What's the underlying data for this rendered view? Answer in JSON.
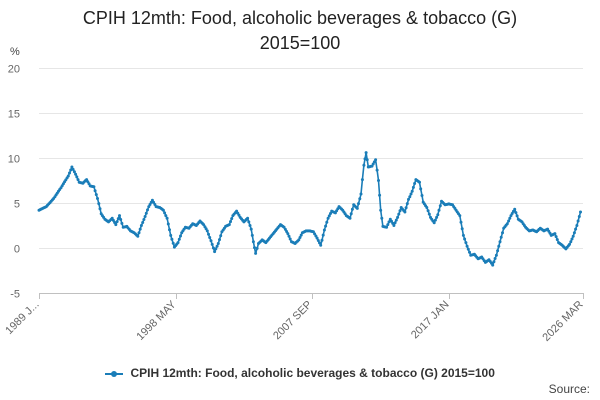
{
  "chart_data": {
    "type": "line",
    "title_line1": "CPIH 12mth: Food, alcoholic beverages & tobacco (G)",
    "title_line2": "2015=100",
    "ylabel": "%",
    "ylim": [
      -5,
      20
    ],
    "yticks": [
      -5,
      0,
      5,
      10,
      15,
      20
    ],
    "xlim": [
      1989.0,
      2026.17
    ],
    "xticks": [
      {
        "label": "1989 J...",
        "value": 1989.0
      },
      {
        "label": "1998 MAY",
        "value": 1998.33
      },
      {
        "label": "2007 SEP",
        "value": 2007.67
      },
      {
        "label": "2017 JAN",
        "value": 2017.0
      },
      {
        "label": "2026 MAR",
        "value": 2026.17
      }
    ],
    "grid": true,
    "legend_position": "bottom",
    "series": [
      {
        "name": "CPIH 12mth: Food, alcoholic beverages & tobacco (G) 2015=100",
        "color": "#1a7db8",
        "points": [
          [
            1989.0,
            4.2
          ],
          [
            1989.5,
            4.6
          ],
          [
            1990.0,
            5.5
          ],
          [
            1990.5,
            6.7
          ],
          [
            1991.0,
            8.0
          ],
          [
            1991.25,
            9.0
          ],
          [
            1991.5,
            8.2
          ],
          [
            1991.75,
            7.3
          ],
          [
            1992.0,
            7.2
          ],
          [
            1992.25,
            7.6
          ],
          [
            1992.5,
            6.9
          ],
          [
            1992.75,
            6.8
          ],
          [
            1993.0,
            5.5
          ],
          [
            1993.25,
            3.8
          ],
          [
            1993.5,
            3.2
          ],
          [
            1993.75,
            2.9
          ],
          [
            1994.0,
            3.3
          ],
          [
            1994.25,
            2.6
          ],
          [
            1994.5,
            3.6
          ],
          [
            1994.75,
            2.3
          ],
          [
            1995.0,
            2.4
          ],
          [
            1995.25,
            1.9
          ],
          [
            1995.5,
            1.7
          ],
          [
            1995.75,
            1.3
          ],
          [
            1996.0,
            2.5
          ],
          [
            1996.25,
            3.5
          ],
          [
            1996.5,
            4.6
          ],
          [
            1996.75,
            5.3
          ],
          [
            1997.0,
            4.6
          ],
          [
            1997.25,
            4.5
          ],
          [
            1997.5,
            4.2
          ],
          [
            1997.75,
            3.3
          ],
          [
            1998.0,
            1.4
          ],
          [
            1998.25,
            0.1
          ],
          [
            1998.5,
            0.6
          ],
          [
            1998.75,
            1.7
          ],
          [
            1999.0,
            2.3
          ],
          [
            1999.25,
            2.2
          ],
          [
            1999.5,
            2.7
          ],
          [
            1999.75,
            2.5
          ],
          [
            2000.0,
            3.0
          ],
          [
            2000.25,
            2.6
          ],
          [
            2000.5,
            1.9
          ],
          [
            2000.75,
            0.8
          ],
          [
            2001.0,
            -0.4
          ],
          [
            2001.25,
            0.5
          ],
          [
            2001.5,
            1.8
          ],
          [
            2001.75,
            2.4
          ],
          [
            2002.0,
            2.6
          ],
          [
            2002.25,
            3.6
          ],
          [
            2002.5,
            4.1
          ],
          [
            2002.75,
            3.4
          ],
          [
            2003.0,
            2.9
          ],
          [
            2003.25,
            3.3
          ],
          [
            2003.5,
            2.1
          ],
          [
            2003.65,
            0.7
          ],
          [
            2003.8,
            -0.6
          ],
          [
            2004.0,
            0.5
          ],
          [
            2004.25,
            0.9
          ],
          [
            2004.5,
            0.6
          ],
          [
            2004.75,
            1.1
          ],
          [
            2005.0,
            1.6
          ],
          [
            2005.25,
            2.1
          ],
          [
            2005.5,
            2.6
          ],
          [
            2005.75,
            2.3
          ],
          [
            2006.0,
            1.6
          ],
          [
            2006.25,
            0.7
          ],
          [
            2006.5,
            0.5
          ],
          [
            2006.75,
            0.9
          ],
          [
            2007.0,
            1.7
          ],
          [
            2007.25,
            1.9
          ],
          [
            2007.5,
            1.9
          ],
          [
            2007.75,
            1.8
          ],
          [
            2008.0,
            1.1
          ],
          [
            2008.25,
            0.3
          ],
          [
            2008.5,
            2.0
          ],
          [
            2008.75,
            3.3
          ],
          [
            2009.0,
            4.1
          ],
          [
            2009.25,
            3.9
          ],
          [
            2009.5,
            4.6
          ],
          [
            2009.75,
            4.2
          ],
          [
            2010.0,
            3.6
          ],
          [
            2010.25,
            3.3
          ],
          [
            2010.5,
            4.8
          ],
          [
            2010.75,
            4.4
          ],
          [
            2011.0,
            6.0
          ],
          [
            2011.2,
            9.2
          ],
          [
            2011.35,
            10.6
          ],
          [
            2011.5,
            9.0
          ],
          [
            2011.75,
            9.1
          ],
          [
            2012.0,
            9.8
          ],
          [
            2012.2,
            7.5
          ],
          [
            2012.35,
            4.2
          ],
          [
            2012.5,
            2.4
          ],
          [
            2012.75,
            2.3
          ],
          [
            2013.0,
            3.2
          ],
          [
            2013.25,
            2.5
          ],
          [
            2013.5,
            3.4
          ],
          [
            2013.75,
            4.5
          ],
          [
            2014.0,
            4.0
          ],
          [
            2014.25,
            5.4
          ],
          [
            2014.5,
            6.3
          ],
          [
            2014.75,
            7.6
          ],
          [
            2015.0,
            7.3
          ],
          [
            2015.25,
            5.1
          ],
          [
            2015.5,
            4.5
          ],
          [
            2015.75,
            3.4
          ],
          [
            2016.0,
            2.8
          ],
          [
            2016.25,
            3.7
          ],
          [
            2016.5,
            5.2
          ],
          [
            2016.75,
            4.8
          ],
          [
            2017.0,
            4.9
          ],
          [
            2017.25,
            4.8
          ],
          [
            2017.5,
            4.2
          ],
          [
            2017.75,
            3.6
          ],
          [
            2018.0,
            1.4
          ],
          [
            2018.25,
            0.2
          ],
          [
            2018.5,
            -0.8
          ],
          [
            2018.75,
            -0.7
          ],
          [
            2019.0,
            -1.2
          ],
          [
            2019.25,
            -1.0
          ],
          [
            2019.5,
            -1.6
          ],
          [
            2019.75,
            -1.3
          ],
          [
            2020.0,
            -1.9
          ],
          [
            2020.25,
            -0.8
          ],
          [
            2020.5,
            0.7
          ],
          [
            2020.75,
            2.2
          ],
          [
            2021.0,
            2.7
          ],
          [
            2021.25,
            3.6
          ],
          [
            2021.5,
            4.3
          ],
          [
            2021.75,
            3.2
          ],
          [
            2022.0,
            2.9
          ],
          [
            2022.25,
            2.3
          ],
          [
            2022.5,
            1.9
          ],
          [
            2022.75,
            2.0
          ],
          [
            2023.0,
            1.8
          ],
          [
            2023.25,
            2.2
          ],
          [
            2023.5,
            1.9
          ],
          [
            2023.75,
            2.1
          ],
          [
            2024.0,
            1.4
          ],
          [
            2024.25,
            1.6
          ],
          [
            2024.5,
            0.6
          ],
          [
            2024.75,
            0.3
          ],
          [
            2025.0,
            -0.1
          ],
          [
            2025.25,
            0.4
          ],
          [
            2025.5,
            1.3
          ],
          [
            2025.75,
            2.5
          ],
          [
            2026.0,
            4.0
          ]
        ]
      }
    ]
  },
  "legend": {
    "label": "CPIH 12mth: Food, alcoholic beverages & tobacco (G) 2015=100"
  },
  "source": {
    "label": "Source:"
  }
}
